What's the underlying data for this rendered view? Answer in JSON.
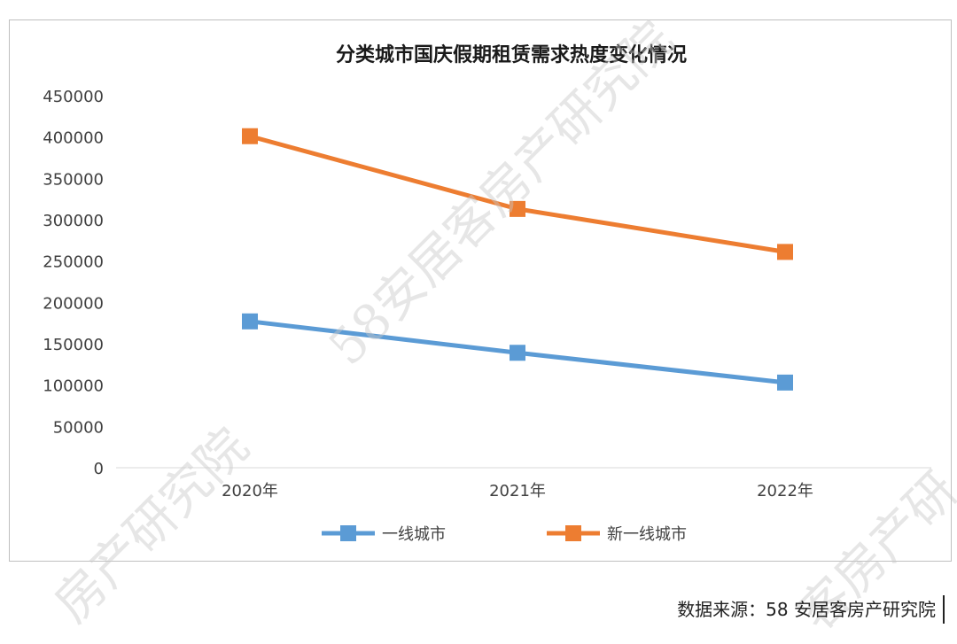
{
  "chart_data": {
    "type": "line",
    "title": "分类城市国庆假期租赁需求热度变化情况",
    "categories": [
      "2020年",
      "2021年",
      "2022年"
    ],
    "series": [
      {
        "name": "一线城市",
        "values": [
          177000,
          139000,
          103000
        ],
        "color": "#5b9bd5"
      },
      {
        "name": "新一线城市",
        "values": [
          401000,
          313000,
          261000
        ],
        "color": "#ed7d31"
      }
    ],
    "ylim": [
      0,
      450000
    ],
    "yticks": [
      "0",
      "50000",
      "100000",
      "150000",
      "200000",
      "250000",
      "300000",
      "350000",
      "400000",
      "450000"
    ],
    "grid": false,
    "legend": "bottom-center",
    "xlabel": "",
    "ylabel": ""
  },
  "watermark": {
    "text_center": "58安居客房产研究院",
    "text_left": "房产研究院",
    "text_right": "客房产研",
    "color": "#c8c8c8"
  },
  "source_note": "数据来源：58 安居客房产研究院"
}
